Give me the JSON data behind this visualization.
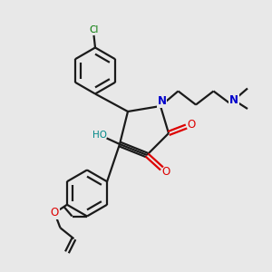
{
  "background_color": "#e8e8e8",
  "bond_color": "#1a1a1a",
  "N_color": "#0000cc",
  "O_color": "#dd0000",
  "Cl_color": "#007700",
  "HO_color": "#008888",
  "figsize": [
    3.0,
    3.0
  ],
  "dpi": 100,
  "xlim": [
    0,
    10
  ],
  "ylim": [
    0,
    10
  ]
}
